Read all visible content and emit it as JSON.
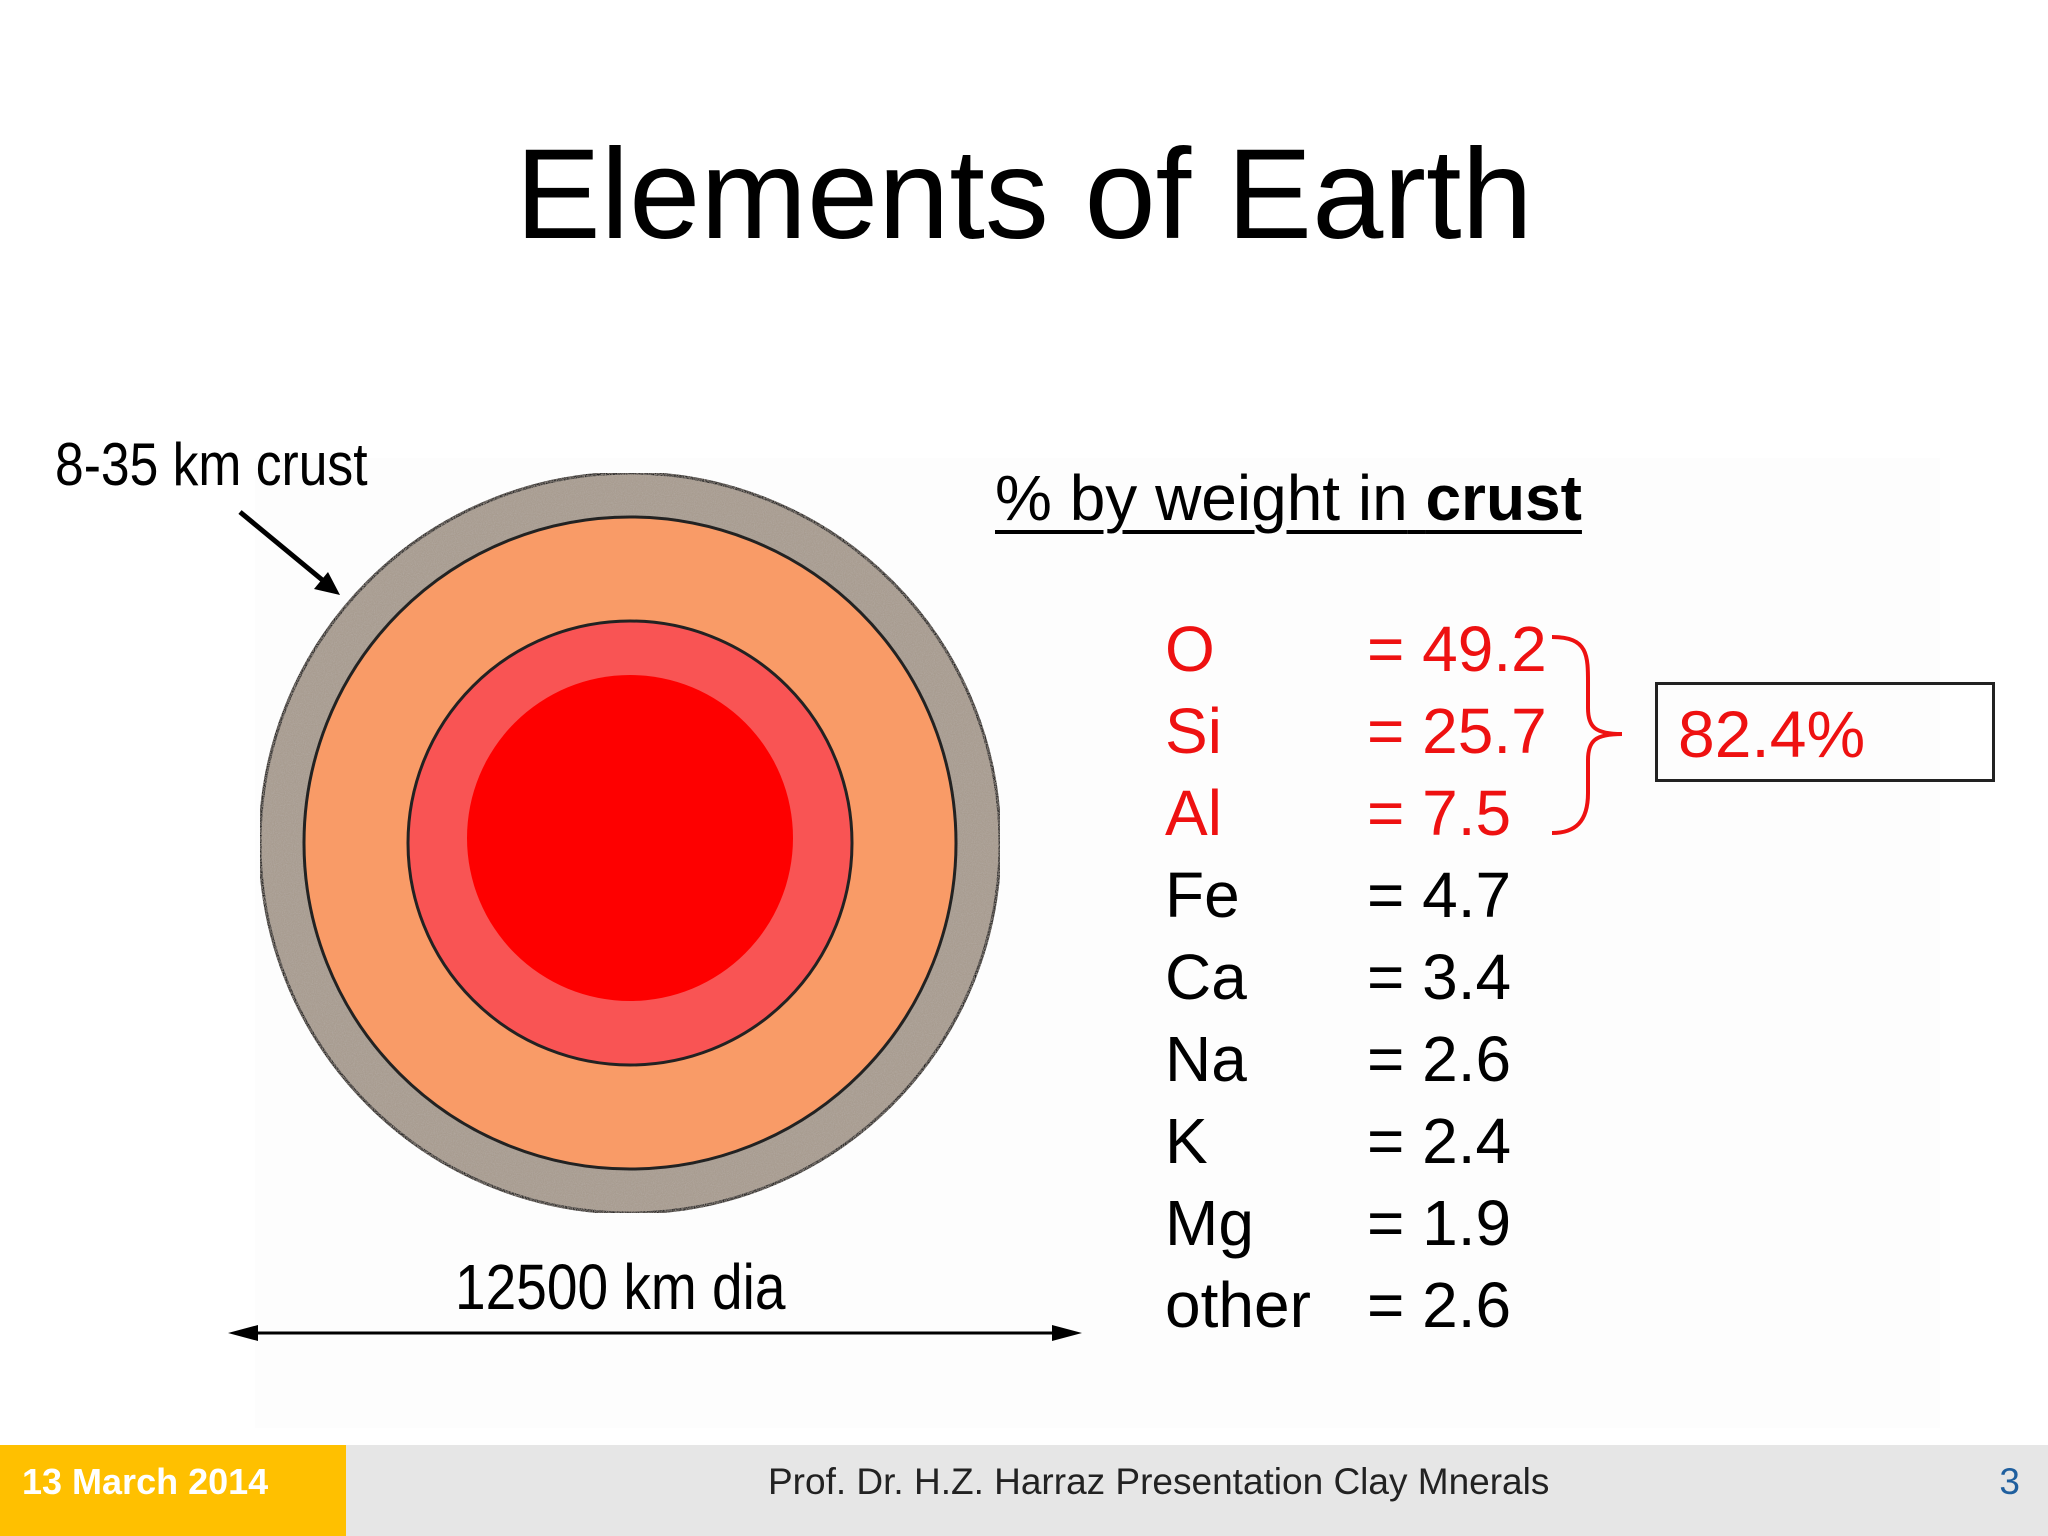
{
  "slide": {
    "title": "Elements of Earth",
    "crust_label": "8-35 km crust",
    "diameter_label": "12500 km dia"
  },
  "composition": {
    "header_prefix": "% by weight in",
    "header_bold": "crust",
    "rows": [
      {
        "element": "O",
        "value": "= 49.2",
        "highlight": true
      },
      {
        "element": "Si",
        "value": "= 25.7",
        "highlight": true
      },
      {
        "element": "Al",
        "value": "= 7.5",
        "highlight": true
      },
      {
        "element": "Fe",
        "value": "= 4.7",
        "highlight": false
      },
      {
        "element": "Ca",
        "value": "= 3.4",
        "highlight": false
      },
      {
        "element": "Na",
        "value": "= 2.6",
        "highlight": false
      },
      {
        "element": "K",
        "value": "= 2.4",
        "highlight": false
      },
      {
        "element": "Mg",
        "value": "= 1.9",
        "highlight": false
      },
      {
        "element": "other",
        "value": "= 2.6",
        "highlight": false
      }
    ],
    "total_label": "82.4%"
  },
  "footer": {
    "date": "13 March 2014",
    "center": "Prof. Dr. H.Z. Harraz Presentation   Clay Mnerals",
    "page": "3"
  },
  "colors": {
    "highlight_red": "#ee1111",
    "crust": "#9e9287",
    "mantle": "#f99b67",
    "outer_core": "#f95454",
    "inner_core": "#fe0000",
    "footer_accent": "#ffc000",
    "footer_bg": "#e6e6e6"
  }
}
